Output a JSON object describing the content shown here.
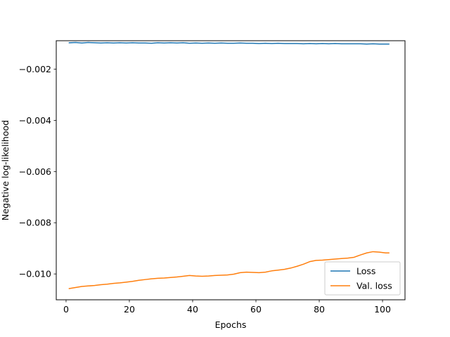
{
  "chart_data": {
    "type": "line",
    "title": "",
    "xlabel": "Epochs",
    "ylabel": "Negative log-likelihood",
    "xlim": [
      -3.1,
      107.1
    ],
    "ylim": [
      -0.01101,
      -0.00089
    ],
    "xticks": [
      0,
      20,
      40,
      60,
      80,
      100
    ],
    "xtick_labels": [
      "0",
      "20",
      "40",
      "60",
      "80",
      "100"
    ],
    "yticks": [
      -0.002,
      -0.004,
      -0.006,
      -0.008,
      -0.01
    ],
    "ytick_labels": [
      "−0.002",
      "−0.004",
      "−0.006",
      "−0.008",
      "−0.010"
    ],
    "grid": false,
    "legend": {
      "position": "lower-right"
    },
    "series": [
      {
        "name": "Loss",
        "color": "#1f77b4",
        "x": [
          1,
          3,
          5,
          7,
          9,
          11,
          13,
          15,
          17,
          19,
          21,
          23,
          25,
          27,
          29,
          31,
          33,
          35,
          37,
          39,
          41,
          43,
          45,
          47,
          49,
          51,
          53,
          55,
          57,
          59,
          61,
          63,
          65,
          67,
          69,
          71,
          73,
          75,
          77,
          79,
          81,
          83,
          85,
          87,
          89,
          91,
          93,
          95,
          97,
          99,
          101,
          102
        ],
        "y": [
          -0.00097,
          -0.00096,
          -0.00098,
          -0.00096,
          -0.00097,
          -0.00098,
          -0.00097,
          -0.00098,
          -0.00097,
          -0.00098,
          -0.00097,
          -0.00098,
          -0.00098,
          -0.00099,
          -0.00097,
          -0.00098,
          -0.00097,
          -0.00098,
          -0.00097,
          -0.00099,
          -0.00098,
          -0.00099,
          -0.00098,
          -0.00099,
          -0.00098,
          -0.00099,
          -0.00099,
          -0.00098,
          -0.00099,
          -0.00099,
          -0.001,
          -0.00099,
          -0.001,
          -0.00099,
          -0.001,
          -0.001,
          -0.001,
          -0.00101,
          -0.001,
          -0.00101,
          -0.001,
          -0.00101,
          -0.001,
          -0.00101,
          -0.00101,
          -0.00101,
          -0.00101,
          -0.00102,
          -0.00101,
          -0.00102,
          -0.00102,
          -0.00102
        ]
      },
      {
        "name": "Val. loss",
        "color": "#ff7f0e",
        "x": [
          1,
          3,
          5,
          7,
          9,
          11,
          13,
          15,
          17,
          19,
          21,
          23,
          25,
          27,
          29,
          31,
          33,
          35,
          37,
          39,
          41,
          43,
          45,
          47,
          49,
          51,
          53,
          55,
          57,
          59,
          61,
          63,
          65,
          67,
          69,
          71,
          73,
          75,
          77,
          79,
          81,
          83,
          85,
          87,
          89,
          91,
          93,
          95,
          97,
          99,
          101,
          102
        ],
        "y": [
          -0.01057,
          -0.01053,
          -0.01049,
          -0.01047,
          -0.01045,
          -0.01042,
          -0.0104,
          -0.01037,
          -0.01035,
          -0.01032,
          -0.01029,
          -0.01025,
          -0.01022,
          -0.01019,
          -0.01017,
          -0.01016,
          -0.01014,
          -0.01012,
          -0.01009,
          -0.01006,
          -0.01008,
          -0.01009,
          -0.01008,
          -0.01006,
          -0.01005,
          -0.01004,
          -0.01001,
          -0.00995,
          -0.00993,
          -0.00994,
          -0.00995,
          -0.00993,
          -0.00988,
          -0.00985,
          -0.00982,
          -0.00977,
          -0.0097,
          -0.00962,
          -0.00952,
          -0.00947,
          -0.00946,
          -0.00944,
          -0.00942,
          -0.0094,
          -0.00938,
          -0.00935,
          -0.00926,
          -0.00918,
          -0.00913,
          -0.00915,
          -0.00918,
          -0.00918
        ]
      }
    ]
  }
}
